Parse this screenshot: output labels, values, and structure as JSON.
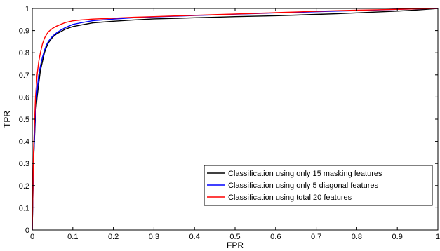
{
  "chart_data": {
    "type": "line",
    "title": "",
    "xlabel": "FPR",
    "ylabel": "TPR",
    "xlim": [
      0,
      1
    ],
    "ylim": [
      0,
      1
    ],
    "xticks": [
      0,
      0.1,
      0.2,
      0.3,
      0.4,
      0.5,
      0.6,
      0.7,
      0.8,
      0.9,
      1
    ],
    "xtick_labels": [
      "0",
      "0.1",
      "0.2",
      "0.3",
      "0.4",
      "0.5",
      "0.6",
      "0.7",
      "0.8",
      "0.9",
      "1"
    ],
    "yticks": [
      0,
      0.1,
      0.2,
      0.3,
      0.4,
      0.5,
      0.6,
      0.7,
      0.8,
      0.9,
      1
    ],
    "ytick_labels": [
      "0",
      "0.1",
      "0.2",
      "0.3",
      "0.4",
      "0.5",
      "0.6",
      "0.7",
      "0.8",
      "0.9",
      "1"
    ],
    "grid": false,
    "legend_position": "lower-right",
    "series": [
      {
        "name": "Classification using only 15 masking features",
        "color": "#000000",
        "x": [
          0,
          0.003,
          0.008,
          0.012,
          0.016,
          0.02,
          0.025,
          0.03,
          0.035,
          0.04,
          0.05,
          0.06,
          0.07,
          0.08,
          0.09,
          0.1,
          0.12,
          0.15,
          0.2,
          0.25,
          0.3,
          0.35,
          0.4,
          0.45,
          0.5,
          0.55,
          0.6,
          0.65,
          0.7,
          0.75,
          0.8,
          0.85,
          0.9,
          0.95,
          1.0
        ],
        "y": [
          0,
          0.3,
          0.52,
          0.6,
          0.66,
          0.72,
          0.76,
          0.8,
          0.825,
          0.845,
          0.87,
          0.885,
          0.895,
          0.905,
          0.912,
          0.918,
          0.925,
          0.935,
          0.942,
          0.948,
          0.953,
          0.955,
          0.958,
          0.96,
          0.963,
          0.965,
          0.967,
          0.97,
          0.973,
          0.976,
          0.98,
          0.984,
          0.988,
          0.993,
          1.0
        ]
      },
      {
        "name": "Classification using only 5 diagonal features",
        "color": "#0000ff",
        "x": [
          0,
          0.003,
          0.008,
          0.012,
          0.016,
          0.02,
          0.025,
          0.03,
          0.035,
          0.04,
          0.05,
          0.06,
          0.07,
          0.08,
          0.09,
          0.1,
          0.12,
          0.15,
          0.2,
          0.25,
          0.3,
          0.35,
          0.4,
          0.45,
          0.5,
          0.55,
          0.6,
          0.65,
          0.7,
          0.75,
          0.8,
          0.85,
          0.9,
          0.95,
          1.0
        ],
        "y": [
          0,
          0.3,
          0.55,
          0.63,
          0.7,
          0.74,
          0.78,
          0.81,
          0.835,
          0.852,
          0.875,
          0.89,
          0.902,
          0.912,
          0.92,
          0.928,
          0.935,
          0.945,
          0.952,
          0.958,
          0.962,
          0.965,
          0.968,
          0.971,
          0.974,
          0.977,
          0.98,
          0.982,
          0.985,
          0.988,
          0.99,
          0.993,
          0.996,
          0.998,
          1.0
        ]
      },
      {
        "name": "Classification using total 20 features",
        "color": "#ff0000",
        "x": [
          0,
          0.003,
          0.008,
          0.012,
          0.016,
          0.02,
          0.025,
          0.03,
          0.035,
          0.04,
          0.05,
          0.06,
          0.07,
          0.08,
          0.09,
          0.1,
          0.12,
          0.15,
          0.2,
          0.25,
          0.3,
          0.35,
          0.4,
          0.45,
          0.5,
          0.55,
          0.6,
          0.65,
          0.7,
          0.75,
          0.8,
          0.85,
          0.9,
          0.95,
          1.0
        ],
        "y": [
          0,
          0.35,
          0.6,
          0.7,
          0.76,
          0.8,
          0.84,
          0.865,
          0.882,
          0.895,
          0.91,
          0.92,
          0.928,
          0.935,
          0.94,
          0.944,
          0.948,
          0.952,
          0.956,
          0.96,
          0.963,
          0.966,
          0.969,
          0.972,
          0.975,
          0.978,
          0.981,
          0.984,
          0.987,
          0.99,
          0.992,
          0.994,
          0.996,
          0.998,
          1.0
        ]
      }
    ]
  }
}
